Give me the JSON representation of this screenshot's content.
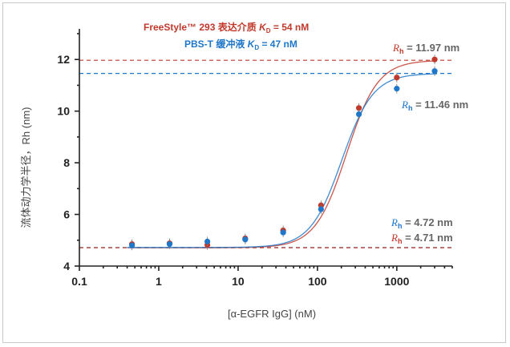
{
  "chart_data": {
    "type": "scatter",
    "x_scale": "log",
    "xlim": [
      0.1,
      5000
    ],
    "ylim": [
      4,
      13
    ],
    "x_ticks": [
      0.1,
      1,
      10,
      100,
      1000
    ],
    "x_tick_labels": [
      "0.1",
      "1",
      "10",
      "100",
      "1000"
    ],
    "y_ticks": [
      4,
      6,
      8,
      10,
      12
    ],
    "y_tick_labels": [
      "4",
      "6",
      "8",
      "10",
      "12"
    ],
    "xlabel": "[α-EGFR IgG] (nM)",
    "ylabel": "流体动力学半径，Rh (nm)",
    "grid": false,
    "series": [
      {
        "name": "FreeStyle™ 293 表达介质 KD = 54 nM",
        "color": "#c0392b",
        "x": [
          0.46,
          1.37,
          4.1,
          12.3,
          37,
          111,
          333,
          1000,
          3000
        ],
        "y": [
          4.85,
          4.88,
          4.82,
          5.07,
          5.38,
          6.35,
          10.12,
          11.3,
          12.0
        ],
        "fit": {
          "bottom": 4.71,
          "top": 11.97,
          "kd": 54
        }
      },
      {
        "name": "PBS-T 缓冲液 KD = 47 nM",
        "color": "#1f77c9",
        "x": [
          0.46,
          1.37,
          4.1,
          12.3,
          37,
          111,
          333,
          1000,
          3000
        ],
        "y": [
          4.8,
          4.85,
          4.95,
          5.03,
          5.3,
          6.2,
          9.88,
          10.87,
          11.55
        ],
        "fit": {
          "bottom": 4.72,
          "top": 11.46,
          "kd": 47
        }
      }
    ],
    "annotations": [
      {
        "label": "Rh = 11.97 nm",
        "y": 11.97,
        "color": "#c0392b"
      },
      {
        "label": "Rh = 11.46 nm",
        "y": 11.46,
        "color": "#1f77c9"
      },
      {
        "label": "Rh = 4.72 nm",
        "y": 4.72,
        "color": "#1f77c9"
      },
      {
        "label": "Rh = 4.71 nm",
        "y": 4.71,
        "color": "#c0392b"
      }
    ]
  },
  "legend": {
    "red_prefix": "FreeStyle™ 293 表达介质 ",
    "red_k": "K",
    "red_sub": "D",
    "red_suffix": " = 54 nM",
    "blue_prefix": "PBS-T 缓冲液 ",
    "blue_k": "K",
    "blue_sub": "D",
    "blue_suffix": " = 47 nM"
  },
  "rh_labels": [
    {
      "r": "R",
      "sub": "h",
      "value": " = 11.97 nm"
    },
    {
      "r": "R",
      "sub": "h",
      "value": " = 11.46 nm"
    },
    {
      "r": "R",
      "sub": "h",
      "value": " = 4.72 nm"
    },
    {
      "r": "R",
      "sub": "h",
      "value": " = 4.71 nm"
    }
  ]
}
